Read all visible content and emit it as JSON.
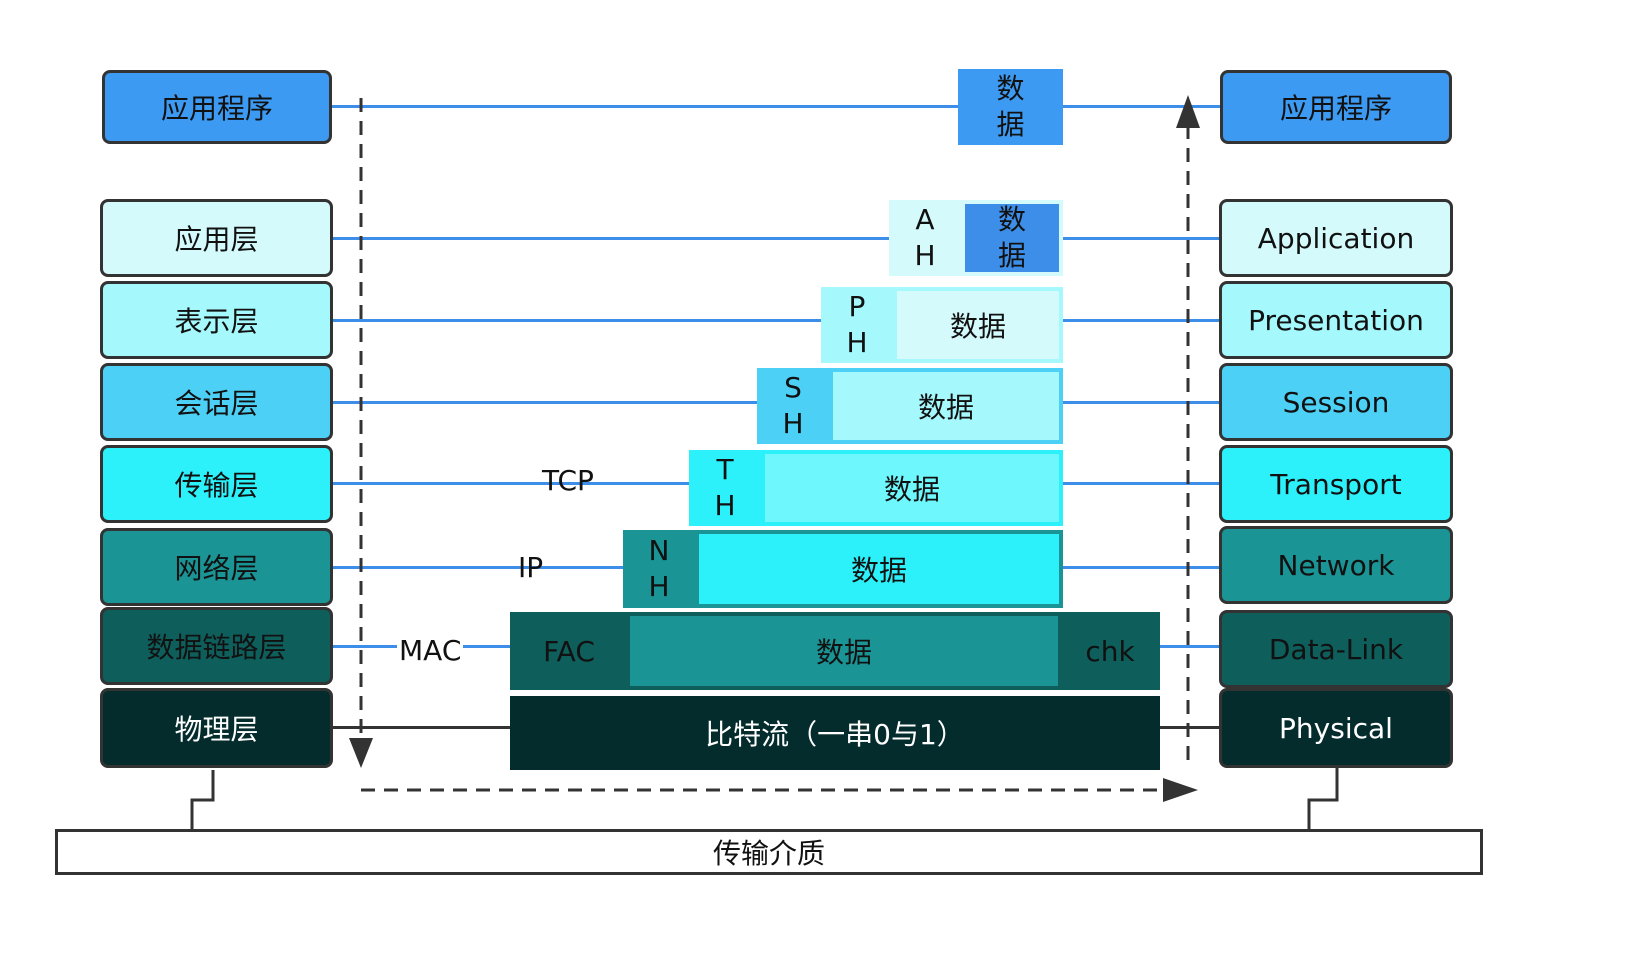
{
  "left_stack": {
    "application_program": "应用程序",
    "layers": [
      "应用层",
      "表示层",
      "会话层",
      "传输层",
      "网络层",
      "数据链路层",
      "物理层"
    ]
  },
  "right_stack": {
    "application_program": "应用程序",
    "layers": [
      "Application",
      "Presentation",
      "Session",
      "Transport",
      "Network",
      "Data-Link",
      "Physical"
    ]
  },
  "packets": {
    "app_data": [
      "数",
      "据"
    ],
    "ah": {
      "header": [
        "A",
        "H"
      ],
      "data": [
        "数",
        "据"
      ]
    },
    "ph": {
      "header": [
        "P",
        "H"
      ],
      "data": "数据"
    },
    "sh": {
      "header": [
        "S",
        "H"
      ],
      "data": "数据"
    },
    "th": {
      "header": [
        "T",
        "H"
      ],
      "data": "数据"
    },
    "nh": {
      "header": [
        "N",
        "H"
      ],
      "data": "数据"
    },
    "frame": {
      "fac": "FAC",
      "data": "数据",
      "chk": "chk"
    },
    "bits": "比特流（一串0与1）"
  },
  "protocols": {
    "tcp": "TCP",
    "ip": "IP",
    "mac": "MAC"
  },
  "medium": "传输介质",
  "colors": {
    "app_program": "#3d9af2",
    "application": "#d4fafc",
    "presentation": "#a5f8fb",
    "session": "#4dd0f5",
    "transport": "#2cf1fb",
    "network": "#1a9494",
    "datalink": "#0e5e5c",
    "physical": "#052c2c",
    "line": "#3d8ee8"
  }
}
